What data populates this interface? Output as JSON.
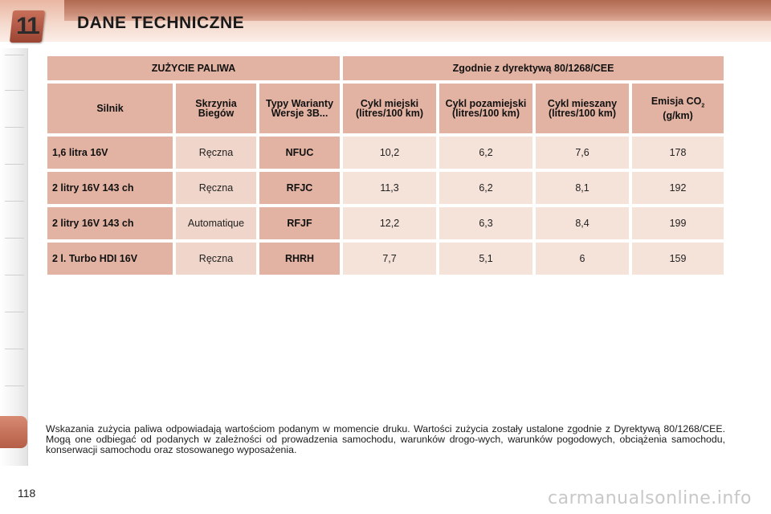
{
  "header": {
    "chapter_number": "11",
    "title": "DANE TECHNICZNE"
  },
  "table": {
    "section_left": "ZUŻYCIE PALIWA",
    "section_right": "Zgodnie z dyrektywą 80/1268/CEE",
    "columns": {
      "engine": "Silnik",
      "gearbox": "Skrzynia Biegów",
      "version": "Typy Warianty Wersje 3B...",
      "urban": "Cykl miejski (litres/100 km)",
      "extra_urban": "Cykl pozamiejski (litres/100 km)",
      "combined": "Cykl mieszany (litres/100 km)",
      "co2_prefix": "Emisja CO",
      "co2_sub": "2",
      "co2_unit": "(g/km)"
    },
    "rows": [
      {
        "engine": "1,6 litra 16V",
        "gearbox": "Ręczna",
        "version": "NFUC",
        "urban": "10,2",
        "extra_urban": "6,2",
        "combined": "7,6",
        "co2": "178"
      },
      {
        "engine": "2 litry 16V 143 ch",
        "gearbox": "Ręczna",
        "version": "RFJC",
        "urban": "11,3",
        "extra_urban": "6,2",
        "combined": "8,1",
        "co2": "192"
      },
      {
        "engine": "2 litry 16V 143 ch",
        "gearbox": "Automatique",
        "version": "RFJF",
        "urban": "12,2",
        "extra_urban": "6,3",
        "combined": "8,4",
        "co2": "199"
      },
      {
        "engine": "2 l. Turbo HDI 16V",
        "gearbox": "Ręczna",
        "version": "RHRH",
        "urban": "7,7",
        "extra_urban": "5,1",
        "combined": "6",
        "co2": "159"
      }
    ]
  },
  "note": "Wskazania zużycia paliwa odpowiadają wartościom podanym w momencie druku. Wartości zużycia zostały ustalone zgodnie z Dyrektywą 80/1268/CEE. Mogą one odbiegać od podanych w zależności od prowadzenia samochodu, warunków drogo-wych, warunków pogodowych, obciążenia samochodu, konserwacji samochodu oraz stosowanego wyposażenia.",
  "page_number": "118",
  "watermark": "carmanualsonline.info",
  "colors": {
    "header_cell": "#e2b3a2",
    "body_cell": "#f5e2d9",
    "accent": "#b55d47"
  }
}
